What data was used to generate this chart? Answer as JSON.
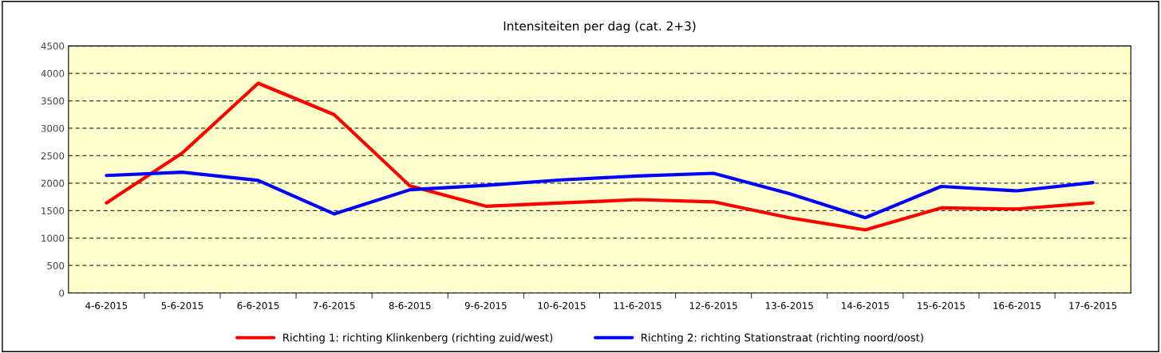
{
  "chart_data": {
    "type": "line",
    "title": "Intensiteiten per dag (cat. 2+3)",
    "categories": [
      "4-6-2015",
      "5-6-2015",
      "6-6-2015",
      "7-6-2015",
      "8-6-2015",
      "9-6-2015",
      "10-6-2015",
      "11-6-2015",
      "12-6-2015",
      "13-6-2015",
      "14-6-2015",
      "15-6-2015",
      "16-6-2015",
      "17-6-2015"
    ],
    "series": [
      {
        "name": "Richting 1: richting Klinkenberg (richting zuid/west)",
        "color": "#ff0000",
        "values": [
          1640,
          2550,
          3820,
          3250,
          1950,
          1580,
          1640,
          1700,
          1660,
          1370,
          1150,
          1550,
          1530,
          1640
        ]
      },
      {
        "name": "Richting 2: richting Stationstraat (richting noord/oost)",
        "color": "#0000ff",
        "values": [
          2140,
          2200,
          2050,
          1440,
          1880,
          1960,
          2060,
          2130,
          2180,
          1810,
          1370,
          1940,
          1860,
          2010
        ]
      }
    ],
    "ylim": [
      0,
      4500
    ],
    "yticks": [
      0,
      500,
      1000,
      1500,
      2000,
      2500,
      3000,
      3500,
      4000,
      4500
    ],
    "grid": "y",
    "legend": "bottom",
    "marker": "none",
    "line_style": "solid"
  }
}
